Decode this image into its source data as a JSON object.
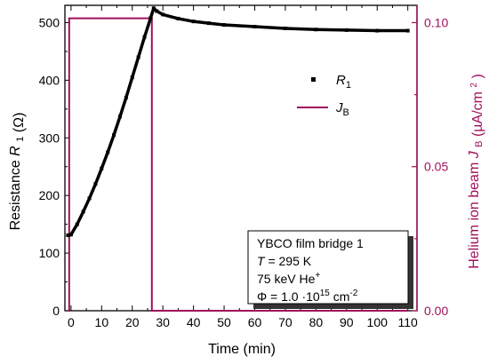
{
  "chart_data": {
    "type": "line",
    "x_axis": {
      "label": "Time (min)",
      "ticks": [
        0,
        10,
        20,
        30,
        40,
        50,
        60,
        70,
        80,
        90,
        100,
        110
      ],
      "range": [
        -2,
        113
      ]
    },
    "y_axis_left": {
      "label_main": "Resistance",
      "label_var": "R",
      "label_sub": "1",
      "label_unit": "(Ω)",
      "ticks": [
        0,
        100,
        200,
        300,
        400,
        500
      ],
      "range": [
        0,
        530
      ]
    },
    "y_axis_right": {
      "label_main": "Helium ion beam",
      "label_var": "J",
      "label_sub": "B",
      "label_unit_pre": "(µA/cm",
      "label_unit_sup": "2",
      "label_unit_post": ")",
      "ticks": [
        "0.00",
        "0.05",
        "0.10"
      ],
      "tick_values": [
        0,
        0.05,
        0.1
      ],
      "range": [
        0,
        0.106
      ]
    },
    "series": [
      {
        "name": "R",
        "name_sub": "1",
        "axis": "left",
        "color": "#000000",
        "marker": "square",
        "x": [
          -1,
          0,
          2,
          4,
          6,
          8,
          10,
          12,
          14,
          16,
          18,
          20,
          22,
          24,
          26,
          27,
          28,
          30,
          35,
          40,
          45,
          50,
          60,
          70,
          80,
          90,
          100,
          110
        ],
        "y": [
          131,
          132,
          150,
          172,
          195,
          220,
          247,
          275,
          305,
          337,
          370,
          405,
          440,
          475,
          508,
          525,
          520,
          514,
          507,
          502,
          499,
          496,
          493,
          490,
          488,
          487,
          486,
          486
        ]
      },
      {
        "name": "J",
        "name_sub": "B",
        "axis": "right",
        "color": "#a0105c",
        "x": [
          -1,
          -0.6,
          -0.6,
          26.4,
          26.4,
          110
        ],
        "y": [
          0,
          0,
          0.1015,
          0.1015,
          0,
          0
        ]
      }
    ],
    "annotation": {
      "line1": "YBCO film bridge 1",
      "line2_var": "T",
      "line2_rest": " = 295 K",
      "line3_pre": "75 keV He",
      "line3_sup": "+",
      "line4_pre": "Φ = 1.0 ·10",
      "line4_sup1": "15",
      "line4_mid": " cm",
      "line4_sup2": "-2"
    },
    "colors": {
      "left_axis": "#000000",
      "right_axis": "#a0105c"
    },
    "grid": false
  }
}
